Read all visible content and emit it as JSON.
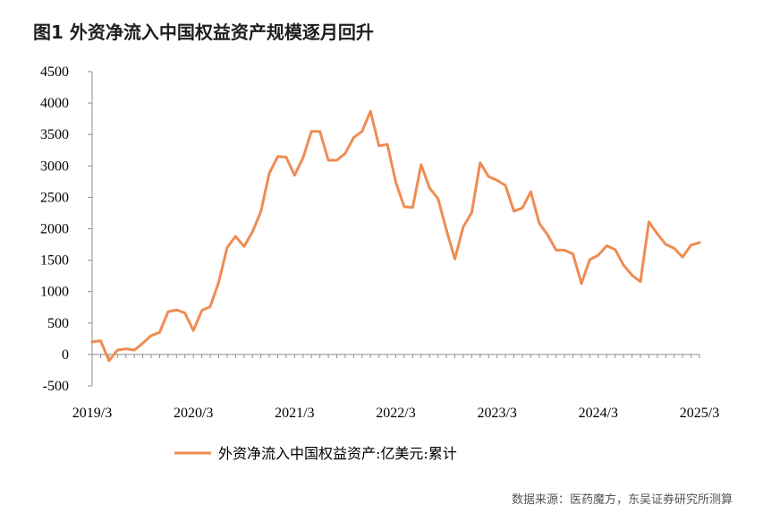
{
  "title": "图1  外资净流入中国权益资产规模逐月回升",
  "source": "数据来源：医药魔方，东吴证券研究所测算",
  "chart_data": {
    "type": "line",
    "title": "图1  外资净流入中国权益资产规模逐月回升",
    "xlabel": "",
    "ylabel": "",
    "ylim": [
      -500,
      4500
    ],
    "yticks": [
      -500,
      0,
      500,
      1000,
      1500,
      2000,
      2500,
      3000,
      3500,
      4000,
      4500
    ],
    "ytick_labels": [
      "-500",
      "0",
      "500",
      "1000",
      "1500",
      "2000",
      "2500",
      "3000",
      "3500",
      "4000",
      "4500"
    ],
    "xtick_labels": [
      "2019/3",
      "2020/3",
      "2021/3",
      "2022/3",
      "2023/3",
      "2024/3",
      "2025/3"
    ],
    "grid": false,
    "legend": "bottom",
    "line_color": "#ee8c54",
    "x": [
      "2019/3",
      "2019/4",
      "2019/5",
      "2019/6",
      "2019/7",
      "2019/8",
      "2019/9",
      "2019/10",
      "2019/11",
      "2019/12",
      "2020/1",
      "2020/2",
      "2020/3",
      "2020/4",
      "2020/5",
      "2020/6",
      "2020/7",
      "2020/8",
      "2020/9",
      "2020/10",
      "2020/11",
      "2020/12",
      "2021/1",
      "2021/2",
      "2021/3",
      "2021/4",
      "2021/5",
      "2021/6",
      "2021/7",
      "2021/8",
      "2021/9",
      "2021/10",
      "2021/11",
      "2021/12",
      "2022/1",
      "2022/2",
      "2022/3",
      "2022/4",
      "2022/5",
      "2022/6",
      "2022/7",
      "2022/8",
      "2022/9",
      "2022/10",
      "2022/11",
      "2022/12",
      "2023/1",
      "2023/2",
      "2023/3",
      "2023/4",
      "2023/5",
      "2023/6",
      "2023/7",
      "2023/8",
      "2023/9",
      "2023/10",
      "2023/11",
      "2023/12",
      "2024/1",
      "2024/2",
      "2024/3",
      "2024/4",
      "2024/5",
      "2024/6",
      "2024/7",
      "2024/8",
      "2024/9",
      "2024/10",
      "2024/11",
      "2024/12",
      "2025/1",
      "2025/2",
      "2025/3"
    ],
    "series": [
      {
        "name": "外资净流入中国权益资产:亿美元:累计",
        "values": [
          200,
          220,
          -100,
          70,
          90,
          70,
          180,
          300,
          350,
          680,
          710,
          660,
          380,
          700,
          760,
          1150,
          1700,
          1880,
          1720,
          1950,
          2270,
          2880,
          3150,
          3140,
          2850,
          3130,
          3550,
          3550,
          3090,
          3090,
          3200,
          3450,
          3550,
          3870,
          3320,
          3340,
          2740,
          2350,
          2340,
          3020,
          2650,
          2480,
          1980,
          1520,
          2030,
          2260,
          3050,
          2830,
          2770,
          2690,
          2280,
          2330,
          2590,
          2090,
          1900,
          1660,
          1660,
          1600,
          1130,
          1510,
          1580,
          1730,
          1670,
          1420,
          1260,
          1160,
          2110,
          1920,
          1750,
          1690,
          1550,
          1740,
          1780
        ]
      }
    ]
  }
}
